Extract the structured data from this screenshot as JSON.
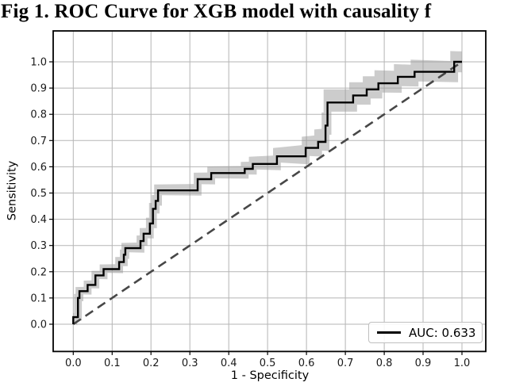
{
  "figure": {
    "background": "#ffffff"
  },
  "chart_data": {
    "type": "line",
    "subtype": "roc-step-curve",
    "title": "Fig 1. ROC Curve for XGB model with causality f",
    "xlabel": "1 - Specificity",
    "ylabel": "Sensitivity",
    "xlim": [
      -0.05,
      1.06
    ],
    "ylim": [
      -0.1,
      1.14
    ],
    "grid": true,
    "x_tick_labels": [
      "0.0",
      "0.1",
      "0.2",
      "0.3",
      "0.4",
      "0.5",
      "0.6",
      "0.7",
      "0.8",
      "0.9",
      "1.0"
    ],
    "y_tick_labels": [
      "0.0",
      "0.1",
      "0.2",
      "0.3",
      "0.4",
      "0.5",
      "0.6",
      "0.7",
      "0.8",
      "0.9",
      "1.0"
    ],
    "auc": 0.633,
    "legend": {
      "position": "lower-right",
      "entries": [
        {
          "label": "AUC: 0.633",
          "color": "#000000",
          "style": "solid"
        }
      ]
    },
    "series": [
      {
        "name": "ROC curve (AUC: 0.633)",
        "type": "step",
        "color": "#000000",
        "line_width": 2.4,
        "points": [
          [
            0.0,
            0.0
          ],
          [
            0.0,
            0.027
          ],
          [
            0.012,
            0.027
          ],
          [
            0.012,
            0.1
          ],
          [
            0.016,
            0.1
          ],
          [
            0.016,
            0.126
          ],
          [
            0.037,
            0.126
          ],
          [
            0.037,
            0.15
          ],
          [
            0.057,
            0.15
          ],
          [
            0.057,
            0.186
          ],
          [
            0.078,
            0.186
          ],
          [
            0.078,
            0.21
          ],
          [
            0.118,
            0.21
          ],
          [
            0.118,
            0.237
          ],
          [
            0.13,
            0.237
          ],
          [
            0.13,
            0.265
          ],
          [
            0.134,
            0.265
          ],
          [
            0.134,
            0.29
          ],
          [
            0.173,
            0.29
          ],
          [
            0.173,
            0.317
          ],
          [
            0.181,
            0.317
          ],
          [
            0.181,
            0.345
          ],
          [
            0.197,
            0.345
          ],
          [
            0.197,
            0.384
          ],
          [
            0.205,
            0.384
          ],
          [
            0.205,
            0.44
          ],
          [
            0.212,
            0.44
          ],
          [
            0.212,
            0.47
          ],
          [
            0.218,
            0.47
          ],
          [
            0.218,
            0.51
          ],
          [
            0.32,
            0.51
          ],
          [
            0.32,
            0.553
          ],
          [
            0.355,
            0.553
          ],
          [
            0.355,
            0.576
          ],
          [
            0.441,
            0.576
          ],
          [
            0.441,
            0.592
          ],
          [
            0.462,
            0.592
          ],
          [
            0.462,
            0.611
          ],
          [
            0.524,
            0.611
          ],
          [
            0.524,
            0.64
          ],
          [
            0.598,
            0.64
          ],
          [
            0.598,
            0.672
          ],
          [
            0.63,
            0.672
          ],
          [
            0.63,
            0.695
          ],
          [
            0.649,
            0.695
          ],
          [
            0.649,
            0.757
          ],
          [
            0.654,
            0.757
          ],
          [
            0.654,
            0.845
          ],
          [
            0.72,
            0.845
          ],
          [
            0.72,
            0.872
          ],
          [
            0.755,
            0.872
          ],
          [
            0.755,
            0.895
          ],
          [
            0.785,
            0.895
          ],
          [
            0.785,
            0.918
          ],
          [
            0.835,
            0.918
          ],
          [
            0.835,
            0.943
          ],
          [
            0.878,
            0.943
          ],
          [
            0.878,
            0.962
          ],
          [
            0.98,
            0.962
          ],
          [
            0.98,
            1.0
          ],
          [
            1.0,
            1.0
          ]
        ]
      },
      {
        "name": "Chance diagonal",
        "type": "line",
        "style": "dashed",
        "color": "#474747",
        "line_width": 2.6,
        "points": [
          [
            0,
            0
          ],
          [
            1,
            1
          ]
        ]
      }
    ],
    "confidence_band": {
      "color": "#9a9a9a",
      "opacity": 0.5,
      "dx": 0.01,
      "dy_up_stops": [
        [
          0.0,
          0.015
        ],
        [
          0.2,
          0.022
        ],
        [
          0.5,
          0.028
        ],
        [
          0.65,
          0.05
        ],
        [
          0.8,
          0.05
        ],
        [
          1.0,
          0.04
        ]
      ],
      "dy_down_stops": [
        [
          0.0,
          0.012
        ],
        [
          0.2,
          0.018
        ],
        [
          0.5,
          0.022
        ],
        [
          0.65,
          0.035
        ],
        [
          0.8,
          0.035
        ],
        [
          1.0,
          0.04
        ]
      ],
      "y_clip": [
        -0.005,
        1.045
      ]
    }
  },
  "colors": {
    "grid": "#b5b5b5",
    "spine": "#000000",
    "tick": "#000000",
    "tick_label": "#1a1a1a",
    "background": "#ffffff",
    "legend_border": "#bfbfbf"
  }
}
